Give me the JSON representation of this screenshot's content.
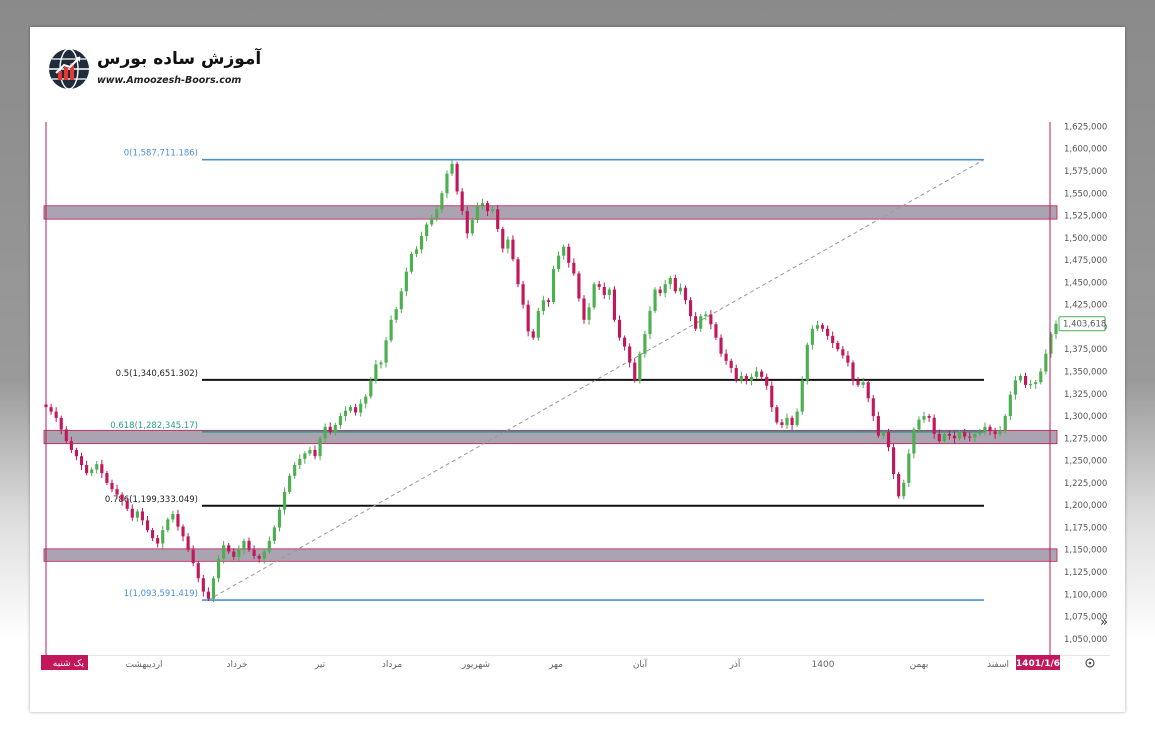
{
  "brand": {
    "name": "آموزش ساده بورس",
    "url": "www.Amoozesh-Boors.com"
  },
  "colors": {
    "up": "#4caf50",
    "down": "#c2185b",
    "fib_edge": "#4a90d9",
    "fib_mid": "#111111",
    "fib_618": "#2a9d8f",
    "zone": "#a9a4b0",
    "zone_border": "#c2185b",
    "marker": "#c2185b",
    "trend": "#999999"
  },
  "chart_data": {
    "type": "candlestick",
    "title": "",
    "xlabel": "",
    "ylabel": "",
    "ylim": [
      1037500,
      1630000
    ],
    "y_ticks": [
      1050000,
      1075000,
      1100000,
      1125000,
      1150000,
      1175000,
      1200000,
      1225000,
      1250000,
      1275000,
      1300000,
      1325000,
      1350000,
      1375000,
      1400000,
      1425000,
      1450000,
      1475000,
      1500000,
      1525000,
      1550000,
      1575000,
      1600000,
      1625000
    ],
    "y_tick_labels": [
      "1,050,000",
      "1,075,000",
      "1,100,000",
      "1,125,000",
      "1,150,000",
      "1,175,000",
      "1,200,000",
      "1,225,000",
      "1,250,000",
      "1,275,000",
      "1,300,000",
      "1,325,000",
      "1,350,000",
      "1,375,000",
      "1,400,000",
      "1,425,000",
      "1,450,000",
      "1,475,000",
      "1,500,000",
      "1,525,000",
      "1,550,000",
      "1,575,000",
      "1,600,000",
      "1,625,000"
    ],
    "x_labels": [
      "اردیبهشت",
      "خرداد",
      "تیر",
      "مرداد",
      "شهریور",
      "مهر",
      "آبان",
      "آذر",
      "1400",
      "بهمن",
      "اسفند"
    ],
    "start_date_label": "یک شنبه",
    "end_date_label": "1401/1/6",
    "last_price_label": "1,403,618",
    "last_price": 1403618,
    "fib_levels": [
      {
        "label": "0(1,587,711.186)",
        "value": 1587711,
        "kind": "edge"
      },
      {
        "label": "0.5(1,340,651.302)",
        "value": 1340651,
        "kind": "mid"
      },
      {
        "label": "0.618(1,282,345.17)",
        "value": 1282345,
        "kind": "618"
      },
      {
        "label": "0.786(1,199,333.049)",
        "value": 1199333,
        "kind": "mid"
      },
      {
        "label": "1(1,093,591.419)",
        "value": 1093591,
        "kind": "edge"
      }
    ],
    "zones": [
      {
        "top": 1536000,
        "bottom": 1521000
      },
      {
        "top": 1284000,
        "bottom": 1269000
      },
      {
        "top": 1151000,
        "bottom": 1137000
      }
    ],
    "trendline": {
      "from": 1093591,
      "to": 1587711
    },
    "series_close": [
      1310000,
      1305000,
      1298000,
      1285000,
      1272000,
      1262000,
      1255000,
      1245000,
      1236000,
      1240000,
      1246000,
      1236000,
      1225000,
      1218000,
      1212000,
      1205000,
      1196000,
      1186000,
      1193000,
      1183000,
      1172000,
      1163000,
      1157000,
      1172000,
      1184000,
      1190000,
      1176000,
      1165000,
      1150000,
      1135000,
      1118000,
      1103000,
      1095000,
      1118000,
      1140000,
      1155000,
      1148000,
      1142000,
      1150000,
      1160000,
      1150000,
      1143000,
      1140000,
      1148000,
      1160000,
      1175000,
      1195000,
      1215000,
      1233000,
      1245000,
      1252000,
      1258000,
      1262000,
      1255000,
      1275000,
      1288000,
      1282000,
      1290000,
      1300000,
      1306000,
      1310000,
      1304000,
      1314000,
      1322000,
      1340000,
      1358000,
      1360000,
      1385000,
      1408000,
      1420000,
      1440000,
      1462000,
      1482000,
      1487000,
      1502000,
      1515000,
      1522000,
      1532000,
      1550000,
      1572000,
      1583000,
      1552000,
      1530000,
      1505000,
      1520000,
      1536000,
      1539000,
      1530000,
      1532000,
      1510000,
      1488000,
      1498000,
      1476000,
      1448000,
      1425000,
      1395000,
      1388000,
      1418000,
      1430000,
      1428000,
      1465000,
      1480000,
      1490000,
      1472000,
      1460000,
      1432000,
      1408000,
      1422000,
      1448000,
      1445000,
      1436000,
      1442000,
      1408000,
      1388000,
      1378000,
      1360000,
      1340000,
      1370000,
      1392000,
      1418000,
      1442000,
      1438000,
      1448000,
      1455000,
      1440000,
      1444000,
      1430000,
      1412000,
      1398000,
      1412000,
      1414000,
      1403000,
      1388000,
      1370000,
      1362000,
      1354000,
      1340000,
      1345000,
      1340000,
      1344000,
      1350000,
      1344000,
      1334000,
      1310000,
      1293000,
      1290000,
      1298000,
      1290000,
      1305000,
      1340000,
      1380000,
      1398000,
      1402000,
      1398000,
      1390000,
      1382000,
      1375000,
      1368000,
      1360000,
      1340000,
      1335000,
      1338000,
      1320000,
      1300000,
      1278000,
      1282000,
      1265000,
      1235000,
      1210000,
      1225000,
      1258000,
      1285000,
      1296000,
      1300000,
      1298000,
      1280000,
      1272000,
      1280000,
      1278000,
      1275000,
      1282000,
      1277000,
      1276000,
      1280000,
      1282000,
      1288000,
      1283000,
      1280000,
      1284000,
      1300000,
      1324000,
      1340000,
      1345000,
      1335000,
      1336000,
      1338000,
      1350000,
      1370000,
      1392000,
      1403618
    ]
  }
}
